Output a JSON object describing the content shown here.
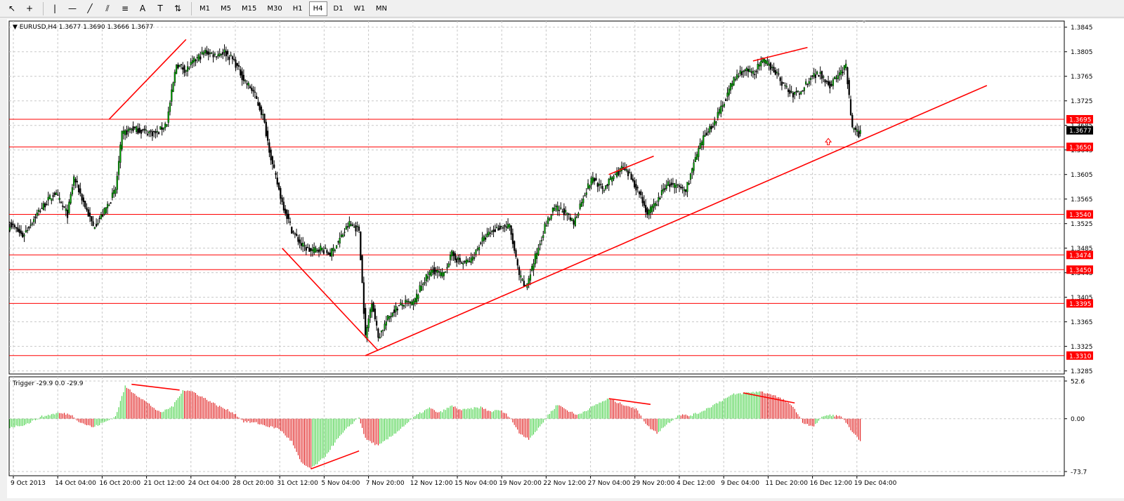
{
  "toolbar": {
    "tools": [
      {
        "name": "cursor-icon",
        "glyph": "↖"
      },
      {
        "name": "crosshair-icon",
        "glyph": "+"
      },
      {
        "name": "vertical-line-icon",
        "glyph": "|"
      },
      {
        "name": "horizontal-line-icon",
        "glyph": "—"
      },
      {
        "name": "trendline-icon",
        "glyph": "╱"
      },
      {
        "name": "equidistant-channel-icon",
        "glyph": "⫽"
      },
      {
        "name": "fibonacci-icon",
        "glyph": "≡"
      },
      {
        "name": "text-icon",
        "glyph": "A"
      },
      {
        "name": "text-label-icon",
        "glyph": "T"
      },
      {
        "name": "arrows-icon",
        "glyph": "⇅"
      }
    ],
    "timeframes": [
      "M1",
      "M5",
      "M15",
      "M30",
      "H1",
      "H4",
      "D1",
      "W1",
      "MN"
    ],
    "active_timeframe": "H4"
  },
  "main_info": "EURUSD,H4  1.3677 1.3690 1.3666 1.3677",
  "indicator_info": "Trigger -29.9 0.0 -29.9",
  "chart_data": {
    "type": "candlestick",
    "symbol": "EURUSD",
    "timeframe": "H4",
    "last_price": 1.3677,
    "price_axis": {
      "min": 1.328,
      "max": 1.3855,
      "ticks": [
        "1.3845",
        "1.3805",
        "1.3765",
        "1.3725",
        "1.3685",
        "1.3645",
        "1.3605",
        "1.3565",
        "1.3525",
        "1.3485",
        "1.3445",
        "1.3405",
        "1.3365",
        "1.3325",
        "1.3285"
      ]
    },
    "horizontal_levels": [
      "1.3695",
      "1.3650",
      "1.3540",
      "1.3474",
      "1.3450",
      "1.3395",
      "1.3310"
    ],
    "x_labels": [
      "9 Oct 2013",
      "14 Oct 04:00",
      "16 Oct 20:00",
      "21 Oct 12:00",
      "24 Oct 04:00",
      "28 Oct 20:00",
      "31 Oct 12:00",
      "5 Nov 04:00",
      "7 Nov 20:00",
      "12 Nov 12:00",
      "15 Nov 04:00",
      "19 Nov 20:00",
      "22 Nov 12:00",
      "27 Nov 04:00",
      "29 Nov 20:00",
      "4 Dec 12:00",
      "9 Dec 04:00",
      "11 Dec 20:00",
      "16 Dec 12:00",
      "19 Dec 04:00"
    ],
    "anchors": [
      [
        0,
        1.3525
      ],
      [
        8,
        1.3505
      ],
      [
        18,
        1.3545
      ],
      [
        28,
        1.3575
      ],
      [
        36,
        1.354
      ],
      [
        40,
        1.36
      ],
      [
        46,
        1.356
      ],
      [
        52,
        1.352
      ],
      [
        58,
        1.354
      ],
      [
        66,
        1.358
      ],
      [
        70,
        1.367
      ],
      [
        76,
        1.368
      ],
      [
        84,
        1.3675
      ],
      [
        92,
        1.3672
      ],
      [
        98,
        1.369
      ],
      [
        104,
        1.3785
      ],
      [
        110,
        1.3775
      ],
      [
        116,
        1.3792
      ],
      [
        122,
        1.3805
      ],
      [
        128,
        1.38
      ],
      [
        134,
        1.3805
      ],
      [
        140,
        1.379
      ],
      [
        146,
        1.376
      ],
      [
        152,
        1.374
      ],
      [
        158,
        1.37
      ],
      [
        164,
        1.362
      ],
      [
        170,
        1.356
      ],
      [
        176,
        1.3515
      ],
      [
        182,
        1.349
      ],
      [
        188,
        1.348
      ],
      [
        194,
        1.3485
      ],
      [
        200,
        1.3475
      ],
      [
        206,
        1.35
      ],
      [
        212,
        1.3525
      ],
      [
        218,
        1.3515
      ],
      [
        222,
        1.334
      ],
      [
        226,
        1.34
      ],
      [
        230,
        1.334
      ],
      [
        236,
        1.337
      ],
      [
        240,
        1.3385
      ],
      [
        246,
        1.3395
      ],
      [
        252,
        1.3395
      ],
      [
        258,
        1.343
      ],
      [
        264,
        1.345
      ],
      [
        270,
        1.344
      ],
      [
        276,
        1.3475
      ],
      [
        282,
        1.346
      ],
      [
        288,
        1.3465
      ],
      [
        294,
        1.3495
      ],
      [
        300,
        1.351
      ],
      [
        306,
        1.352
      ],
      [
        312,
        1.352
      ],
      [
        318,
        1.344
      ],
      [
        322,
        1.342
      ],
      [
        328,
        1.347
      ],
      [
        334,
        1.352
      ],
      [
        340,
        1.355
      ],
      [
        346,
        1.3545
      ],
      [
        352,
        1.3525
      ],
      [
        358,
        1.357
      ],
      [
        364,
        1.36
      ],
      [
        370,
        1.358
      ],
      [
        376,
        1.36
      ],
      [
        382,
        1.3615
      ],
      [
        388,
        1.36
      ],
      [
        394,
        1.357
      ],
      [
        398,
        1.354
      ],
      [
        404,
        1.356
      ],
      [
        410,
        1.359
      ],
      [
        416,
        1.3585
      ],
      [
        422,
        1.358
      ],
      [
        428,
        1.363
      ],
      [
        434,
        1.367
      ],
      [
        440,
        1.369
      ],
      [
        446,
        1.3725
      ],
      [
        452,
        1.376
      ],
      [
        458,
        1.3775
      ],
      [
        464,
        1.377
      ],
      [
        470,
        1.379
      ],
      [
        476,
        1.378
      ],
      [
        482,
        1.3755
      ],
      [
        488,
        1.3735
      ],
      [
        494,
        1.374
      ],
      [
        500,
        1.3765
      ],
      [
        506,
        1.377
      ],
      [
        512,
        1.375
      ],
      [
        518,
        1.377
      ],
      [
        522,
        1.378
      ],
      [
        526,
        1.368
      ],
      [
        530,
        1.367
      ],
      [
        531,
        1.3677
      ]
    ],
    "trend_lines": [
      {
        "label": "rising-support-trendline",
        "from": [
          222,
          1.331
        ],
        "to": [
          610,
          1.375
        ]
      },
      {
        "label": "falling-wedge-line",
        "from": [
          170,
          1.3485
        ],
        "to": [
          230,
          1.3318
        ]
      },
      {
        "label": "october-rally-line",
        "from": [
          62,
          1.3695
        ],
        "to": [
          110,
          1.3825
        ]
      },
      {
        "label": "november-divergence-line",
        "from": [
          374,
          1.3605
        ],
        "to": [
          402,
          1.3635
        ]
      },
      {
        "label": "december-divergence-line",
        "from": [
          464,
          1.379
        ],
        "to": [
          498,
          1.3812
        ]
      }
    ],
    "indicator": {
      "name": "Trigger",
      "axis_ticks": [
        "52.6",
        "0.00",
        "-73.7"
      ],
      "min": -73.7,
      "max": 52.6,
      "anchors": [
        [
          0,
          -12
        ],
        [
          10,
          -8
        ],
        [
          20,
          3
        ],
        [
          30,
          8
        ],
        [
          38,
          6
        ],
        [
          44,
          -5
        ],
        [
          52,
          -12
        ],
        [
          60,
          -4
        ],
        [
          66,
          3
        ],
        [
          72,
          45
        ],
        [
          78,
          35
        ],
        [
          86,
          22
        ],
        [
          94,
          8
        ],
        [
          102,
          18
        ],
        [
          108,
          40
        ],
        [
          114,
          38
        ],
        [
          122,
          28
        ],
        [
          130,
          18
        ],
        [
          140,
          8
        ],
        [
          146,
          -4
        ],
        [
          154,
          -6
        ],
        [
          160,
          -10
        ],
        [
          168,
          -14
        ],
        [
          176,
          -32
        ],
        [
          182,
          -62
        ],
        [
          188,
          -70
        ],
        [
          196,
          -55
        ],
        [
          204,
          -30
        ],
        [
          212,
          -10
        ],
        [
          218,
          2
        ],
        [
          222,
          -28
        ],
        [
          230,
          -38
        ],
        [
          238,
          -25
        ],
        [
          246,
          -10
        ],
        [
          254,
          5
        ],
        [
          262,
          15
        ],
        [
          268,
          8
        ],
        [
          276,
          18
        ],
        [
          282,
          12
        ],
        [
          288,
          14
        ],
        [
          294,
          16
        ],
        [
          300,
          10
        ],
        [
          306,
          12
        ],
        [
          312,
          3
        ],
        [
          318,
          -20
        ],
        [
          324,
          -28
        ],
        [
          330,
          -14
        ],
        [
          336,
          5
        ],
        [
          342,
          20
        ],
        [
          348,
          12
        ],
        [
          354,
          5
        ],
        [
          360,
          12
        ],
        [
          368,
          22
        ],
        [
          374,
          28
        ],
        [
          380,
          22
        ],
        [
          386,
          18
        ],
        [
          392,
          12
        ],
        [
          398,
          -10
        ],
        [
          404,
          -20
        ],
        [
          410,
          -8
        ],
        [
          418,
          6
        ],
        [
          424,
          4
        ],
        [
          430,
          8
        ],
        [
          436,
          15
        ],
        [
          444,
          25
        ],
        [
          452,
          34
        ],
        [
          460,
          36
        ],
        [
          468,
          38
        ],
        [
          476,
          34
        ],
        [
          484,
          25
        ],
        [
          490,
          14
        ],
        [
          496,
          -8
        ],
        [
          502,
          -10
        ],
        [
          508,
          4
        ],
        [
          514,
          5
        ],
        [
          520,
          2
        ],
        [
          526,
          -20
        ],
        [
          531,
          -29.9
        ]
      ],
      "divergence_lines": [
        {
          "label": "peak-divergence-line",
          "from": [
            76,
            48
          ],
          "to": [
            106,
            40
          ]
        },
        {
          "label": "trough-divergence-line",
          "from": [
            188,
            -70
          ],
          "to": [
            218,
            -45
          ]
        },
        {
          "label": "november-indicator-line",
          "from": [
            374,
            28
          ],
          "to": [
            400,
            20
          ]
        },
        {
          "label": "december-indicator-line",
          "from": [
            458,
            36
          ],
          "to": [
            490,
            22
          ]
        }
      ]
    }
  }
}
